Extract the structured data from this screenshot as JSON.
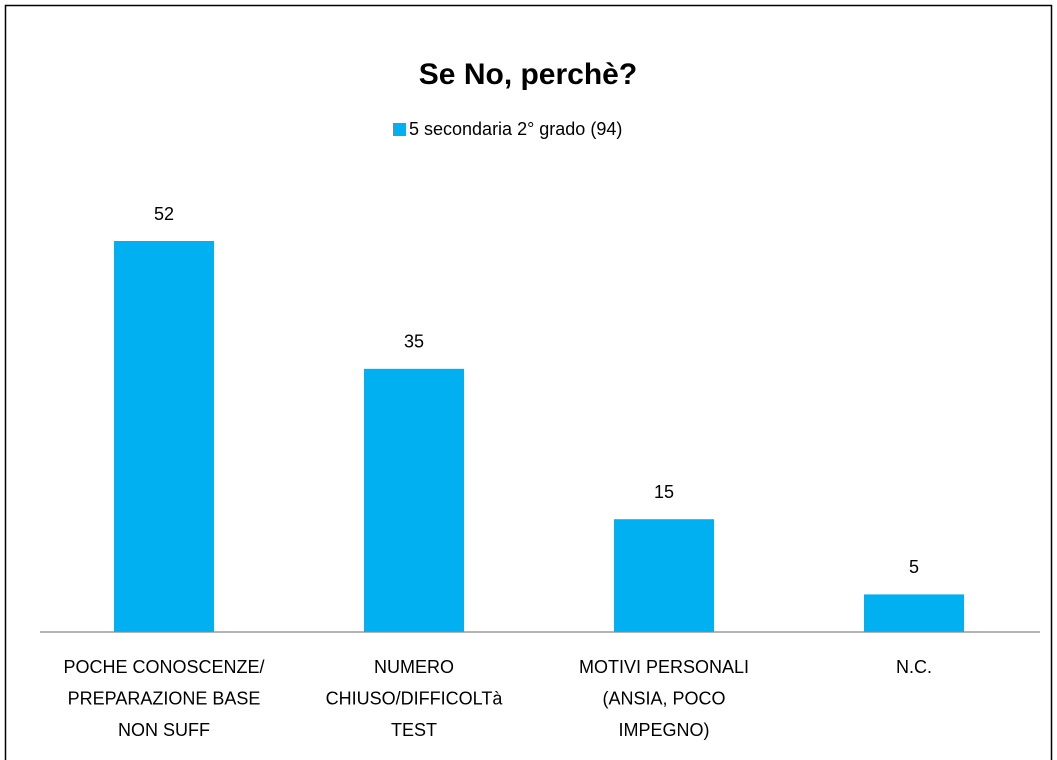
{
  "chart_data": {
    "type": "bar",
    "title": "Se No, perchè?",
    "categories": [
      [
        "POCHE CONOSCENZE/",
        "PREPARAZIONE BASE",
        "NON SUFF"
      ],
      [
        "NUMERO",
        "CHIUSO/DIFFICOLTà",
        "TEST"
      ],
      [
        "MOTIVI PERSONALI",
        "(ANSIA, POCO",
        "IMPEGNO)"
      ],
      [
        "N.C."
      ]
    ],
    "series": [
      {
        "name": "5 secondaria 2° grado (94)",
        "color": "#00b0f0",
        "values": [
          52,
          35,
          15,
          5
        ]
      }
    ],
    "legend": "top"
  }
}
